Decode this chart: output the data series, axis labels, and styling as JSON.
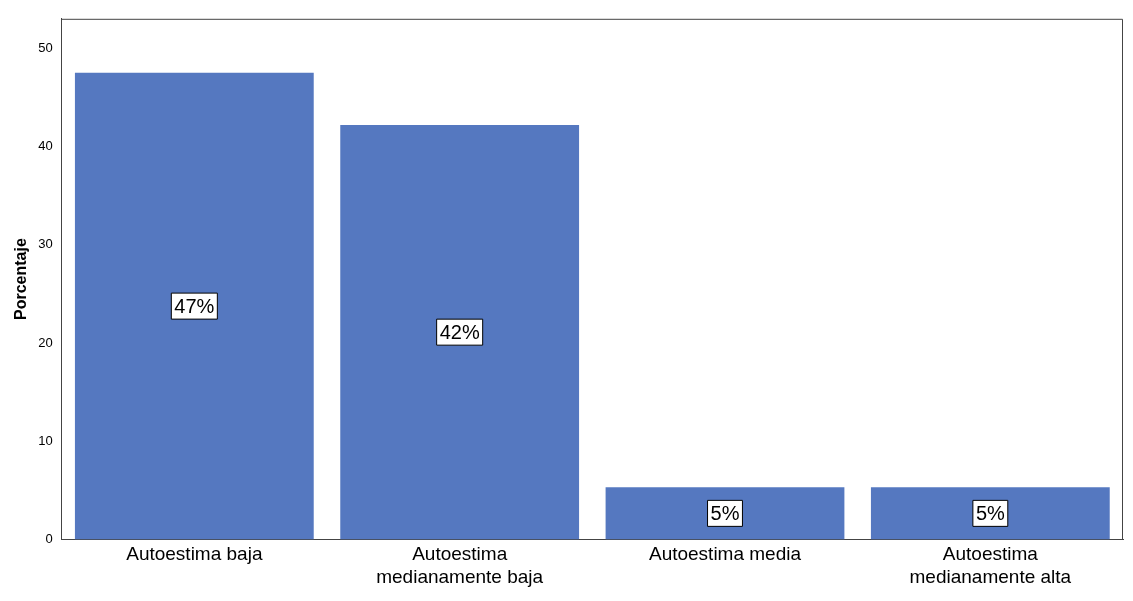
{
  "chart_data": {
    "type": "bar",
    "ylabel": "Porcentaje",
    "categories": [
      "Autoestima baja",
      "Autoestima medianamente baja",
      "Autoestima media",
      "Autoestima medianamente alta"
    ],
    "values": [
      47.5,
      42.2,
      5.3,
      5.3
    ],
    "value_labels": [
      "47%",
      "42%",
      "5%",
      "5%"
    ],
    "color": "#5578c0",
    "ylim": [
      0,
      53
    ],
    "yticks": [
      0,
      10,
      20,
      30,
      40,
      50
    ],
    "grid": false,
    "legend": false
  }
}
